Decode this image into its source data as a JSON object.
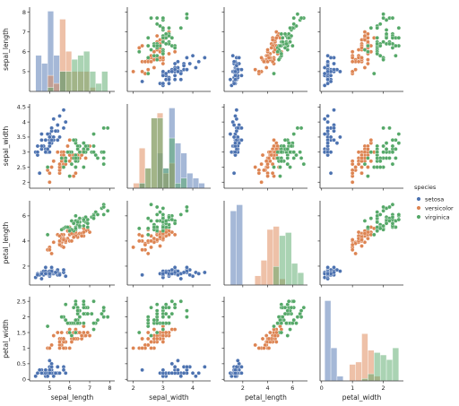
{
  "chart_data": {
    "type": "scatter",
    "legend": {
      "title": "species",
      "placement": "right"
    },
    "variables": [
      "sepal_length",
      "sepal_width",
      "petal_length",
      "petal_width"
    ],
    "axes": {
      "sepal_length": {
        "label": "sepal_length",
        "lim": [
          4.0,
          8.25
        ],
        "ticks": [
          5,
          6,
          7,
          8
        ]
      },
      "sepal_width": {
        "label": "sepal_width",
        "lim": [
          1.8,
          4.6
        ],
        "ticks": [
          2.0,
          2.5,
          3.0,
          3.5,
          4.0,
          4.5
        ],
        "ticks_x": [
          2,
          3,
          4
        ]
      },
      "petal_length": {
        "label": "petal_length",
        "lim": [
          0.5,
          7.2
        ],
        "ticks": [
          2,
          4,
          6
        ]
      },
      "petal_width": {
        "label": "petal_width",
        "lim": [
          -0.05,
          2.65
        ],
        "ticks": [
          0.0,
          0.5,
          1.0,
          1.5,
          2.0,
          2.5
        ],
        "ticks_x": [
          0,
          1,
          2
        ]
      }
    },
    "series": [
      {
        "name": "setosa",
        "color": "#4c72b0",
        "points": [
          [
            5.1,
            3.5,
            1.4,
            0.2
          ],
          [
            4.9,
            3.0,
            1.4,
            0.2
          ],
          [
            4.7,
            3.2,
            1.3,
            0.2
          ],
          [
            4.6,
            3.1,
            1.5,
            0.2
          ],
          [
            5.0,
            3.6,
            1.4,
            0.2
          ],
          [
            5.4,
            3.9,
            1.7,
            0.4
          ],
          [
            4.6,
            3.4,
            1.4,
            0.3
          ],
          [
            5.0,
            3.4,
            1.5,
            0.2
          ],
          [
            4.4,
            2.9,
            1.4,
            0.2
          ],
          [
            4.9,
            3.1,
            1.5,
            0.1
          ],
          [
            5.4,
            3.7,
            1.5,
            0.2
          ],
          [
            4.8,
            3.4,
            1.6,
            0.2
          ],
          [
            4.8,
            3.0,
            1.4,
            0.1
          ],
          [
            4.3,
            3.0,
            1.1,
            0.1
          ],
          [
            5.8,
            4.0,
            1.2,
            0.2
          ],
          [
            5.7,
            4.4,
            1.5,
            0.4
          ],
          [
            5.4,
            3.9,
            1.3,
            0.4
          ],
          [
            5.1,
            3.5,
            1.4,
            0.3
          ],
          [
            5.7,
            3.8,
            1.7,
            0.3
          ],
          [
            5.1,
            3.8,
            1.5,
            0.3
          ],
          [
            5.4,
            3.4,
            1.7,
            0.2
          ],
          [
            5.1,
            3.7,
            1.5,
            0.4
          ],
          [
            4.6,
            3.6,
            1.0,
            0.2
          ],
          [
            5.1,
            3.3,
            1.7,
            0.5
          ],
          [
            4.8,
            3.4,
            1.9,
            0.2
          ],
          [
            5.0,
            3.0,
            1.6,
            0.2
          ],
          [
            5.0,
            3.4,
            1.6,
            0.4
          ],
          [
            5.2,
            3.5,
            1.5,
            0.2
          ],
          [
            5.2,
            3.4,
            1.4,
            0.2
          ],
          [
            4.7,
            3.2,
            1.6,
            0.2
          ],
          [
            4.8,
            3.1,
            1.6,
            0.2
          ],
          [
            5.4,
            3.4,
            1.5,
            0.4
          ],
          [
            5.2,
            4.1,
            1.5,
            0.1
          ],
          [
            5.5,
            4.2,
            1.4,
            0.2
          ],
          [
            4.9,
            3.1,
            1.5,
            0.2
          ],
          [
            5.0,
            3.2,
            1.2,
            0.2
          ],
          [
            5.5,
            3.5,
            1.3,
            0.2
          ],
          [
            4.9,
            3.6,
            1.4,
            0.1
          ],
          [
            4.4,
            3.0,
            1.3,
            0.2
          ],
          [
            5.1,
            3.4,
            1.5,
            0.2
          ],
          [
            5.0,
            3.5,
            1.3,
            0.3
          ],
          [
            4.5,
            2.3,
            1.3,
            0.3
          ],
          [
            4.4,
            3.2,
            1.3,
            0.2
          ],
          [
            5.0,
            3.5,
            1.6,
            0.6
          ],
          [
            5.1,
            3.8,
            1.9,
            0.4
          ],
          [
            4.8,
            3.0,
            1.4,
            0.3
          ],
          [
            5.1,
            3.8,
            1.6,
            0.2
          ],
          [
            4.6,
            3.2,
            1.4,
            0.2
          ],
          [
            5.3,
            3.7,
            1.5,
            0.2
          ],
          [
            5.0,
            3.3,
            1.4,
            0.2
          ]
        ]
      },
      {
        "name": "versicolor",
        "color": "#dd8452",
        "points": [
          [
            7.0,
            3.2,
            4.7,
            1.4
          ],
          [
            6.4,
            3.2,
            4.5,
            1.5
          ],
          [
            6.9,
            3.1,
            4.9,
            1.5
          ],
          [
            5.5,
            2.3,
            4.0,
            1.3
          ],
          [
            6.5,
            2.8,
            4.6,
            1.5
          ],
          [
            5.7,
            2.8,
            4.5,
            1.3
          ],
          [
            6.3,
            3.3,
            4.7,
            1.6
          ],
          [
            4.9,
            2.4,
            3.3,
            1.0
          ],
          [
            6.6,
            2.9,
            4.6,
            1.3
          ],
          [
            5.2,
            2.7,
            3.9,
            1.4
          ],
          [
            5.0,
            2.0,
            3.5,
            1.0
          ],
          [
            5.9,
            3.0,
            4.2,
            1.5
          ],
          [
            6.0,
            2.2,
            4.0,
            1.0
          ],
          [
            6.1,
            2.9,
            4.7,
            1.4
          ],
          [
            5.6,
            2.9,
            3.6,
            1.3
          ],
          [
            6.7,
            3.1,
            4.4,
            1.4
          ],
          [
            5.6,
            3.0,
            4.5,
            1.5
          ],
          [
            5.8,
            2.7,
            4.1,
            1.0
          ],
          [
            6.2,
            2.2,
            4.5,
            1.5
          ],
          [
            5.6,
            2.5,
            3.9,
            1.1
          ],
          [
            5.9,
            3.2,
            4.8,
            1.8
          ],
          [
            6.1,
            2.8,
            4.0,
            1.3
          ],
          [
            6.3,
            2.5,
            4.9,
            1.5
          ],
          [
            6.1,
            2.8,
            4.7,
            1.2
          ],
          [
            6.4,
            2.9,
            4.3,
            1.3
          ],
          [
            6.6,
            3.0,
            4.4,
            1.4
          ],
          [
            6.8,
            2.8,
            4.8,
            1.4
          ],
          [
            6.7,
            3.0,
            5.0,
            1.7
          ],
          [
            6.0,
            2.9,
            4.5,
            1.5
          ],
          [
            5.7,
            2.6,
            3.5,
            1.0
          ],
          [
            5.5,
            2.4,
            3.8,
            1.1
          ],
          [
            5.5,
            2.4,
            3.7,
            1.0
          ],
          [
            5.8,
            2.7,
            3.9,
            1.2
          ],
          [
            6.0,
            2.7,
            5.1,
            1.6
          ],
          [
            5.4,
            3.0,
            4.5,
            1.5
          ],
          [
            6.0,
            3.4,
            4.5,
            1.6
          ],
          [
            6.7,
            3.1,
            4.7,
            1.5
          ],
          [
            6.3,
            2.3,
            4.4,
            1.3
          ],
          [
            5.6,
            3.0,
            4.1,
            1.3
          ],
          [
            5.5,
            2.5,
            4.0,
            1.3
          ],
          [
            5.5,
            2.6,
            4.4,
            1.2
          ],
          [
            6.1,
            3.0,
            4.6,
            1.4
          ],
          [
            5.8,
            2.6,
            4.0,
            1.2
          ],
          [
            5.0,
            2.3,
            3.3,
            1.0
          ],
          [
            5.6,
            2.7,
            4.2,
            1.3
          ],
          [
            5.7,
            3.0,
            4.2,
            1.2
          ],
          [
            5.7,
            2.9,
            4.2,
            1.3
          ],
          [
            6.2,
            2.9,
            4.3,
            1.3
          ],
          [
            5.1,
            2.5,
            3.0,
            1.1
          ],
          [
            5.7,
            2.8,
            4.1,
            1.3
          ]
        ]
      },
      {
        "name": "virginica",
        "color": "#55a868",
        "points": [
          [
            6.3,
            3.3,
            6.0,
            2.5
          ],
          [
            5.8,
            2.7,
            5.1,
            1.9
          ],
          [
            7.1,
            3.0,
            5.9,
            2.1
          ],
          [
            6.3,
            2.9,
            5.6,
            1.8
          ],
          [
            6.5,
            3.0,
            5.8,
            2.2
          ],
          [
            7.6,
            3.0,
            6.6,
            2.1
          ],
          [
            4.9,
            2.5,
            4.5,
            1.7
          ],
          [
            7.3,
            2.9,
            6.3,
            1.8
          ],
          [
            6.7,
            2.5,
            5.8,
            1.8
          ],
          [
            7.2,
            3.6,
            6.1,
            2.5
          ],
          [
            6.5,
            3.2,
            5.1,
            2.0
          ],
          [
            6.4,
            2.7,
            5.3,
            1.9
          ],
          [
            6.8,
            3.0,
            5.5,
            2.1
          ],
          [
            5.7,
            2.5,
            5.0,
            2.0
          ],
          [
            5.8,
            2.8,
            5.1,
            2.4
          ],
          [
            6.4,
            3.2,
            5.3,
            2.3
          ],
          [
            6.5,
            3.0,
            5.5,
            1.8
          ],
          [
            7.7,
            3.8,
            6.7,
            2.2
          ],
          [
            7.7,
            2.6,
            6.9,
            2.3
          ],
          [
            6.0,
            2.2,
            5.0,
            1.5
          ],
          [
            6.9,
            3.2,
            5.7,
            2.3
          ],
          [
            5.6,
            2.8,
            4.9,
            2.0
          ],
          [
            7.7,
            2.8,
            6.7,
            2.0
          ],
          [
            6.3,
            2.7,
            4.9,
            1.8
          ],
          [
            6.7,
            3.3,
            5.7,
            2.1
          ],
          [
            7.2,
            3.2,
            6.0,
            1.8
          ],
          [
            6.2,
            2.8,
            4.8,
            1.8
          ],
          [
            6.1,
            3.0,
            4.9,
            1.8
          ],
          [
            6.4,
            2.8,
            5.6,
            2.1
          ],
          [
            7.2,
            3.0,
            5.8,
            1.6
          ],
          [
            7.4,
            2.8,
            6.1,
            1.9
          ],
          [
            7.9,
            3.8,
            6.4,
            2.0
          ],
          [
            6.4,
            2.8,
            5.6,
            2.2
          ],
          [
            6.3,
            2.8,
            5.1,
            1.5
          ],
          [
            6.1,
            2.6,
            5.6,
            1.4
          ],
          [
            7.7,
            3.0,
            6.1,
            2.3
          ],
          [
            6.3,
            3.4,
            5.6,
            2.4
          ],
          [
            6.4,
            3.1,
            5.5,
            1.8
          ],
          [
            6.0,
            3.0,
            4.8,
            1.8
          ],
          [
            6.9,
            3.1,
            5.4,
            2.1
          ],
          [
            6.7,
            3.1,
            5.6,
            2.4
          ],
          [
            6.9,
            3.1,
            5.1,
            2.3
          ],
          [
            5.8,
            2.7,
            5.1,
            1.9
          ],
          [
            6.8,
            3.2,
            5.9,
            2.3
          ],
          [
            6.7,
            3.3,
            5.7,
            2.5
          ],
          [
            6.7,
            3.0,
            5.2,
            2.3
          ],
          [
            6.3,
            2.5,
            5.0,
            1.9
          ],
          [
            6.5,
            3.0,
            5.2,
            2.0
          ],
          [
            6.2,
            3.4,
            5.4,
            2.3
          ],
          [
            5.9,
            3.0,
            5.1,
            1.8
          ]
        ]
      }
    ]
  }
}
